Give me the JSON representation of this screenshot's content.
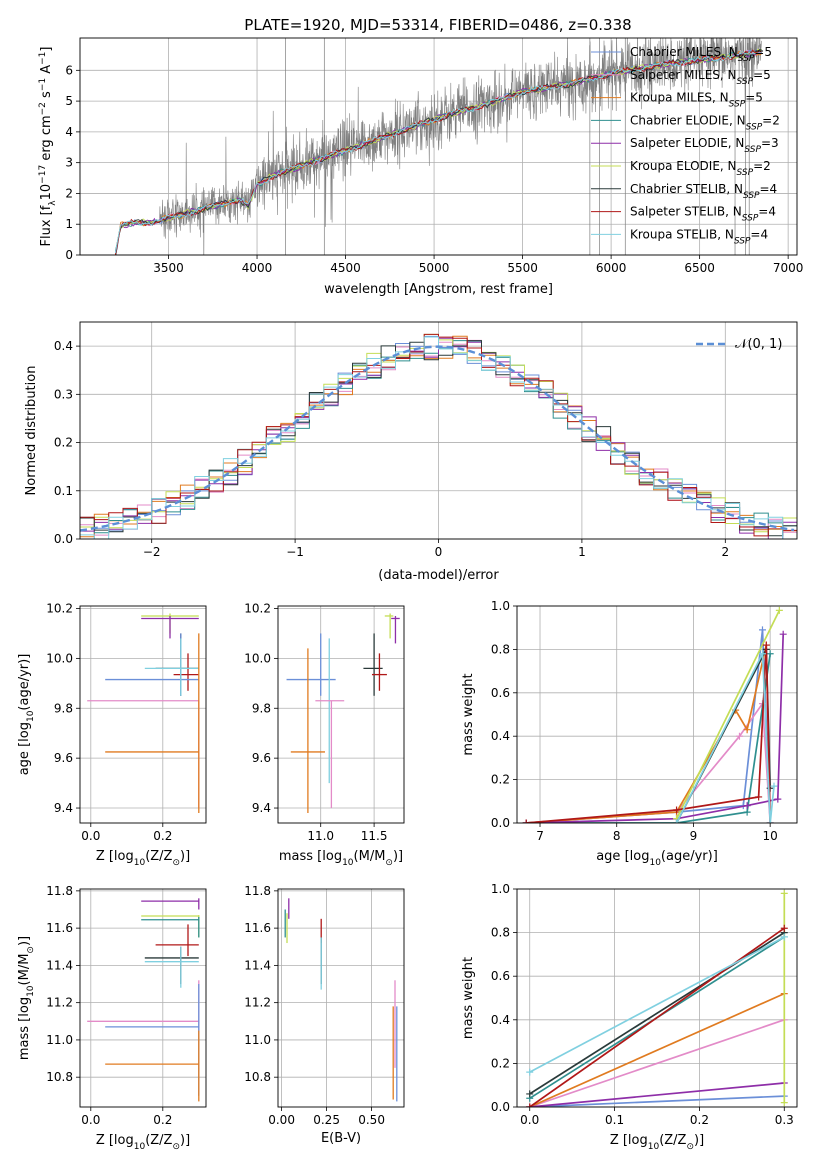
{
  "figure": {
    "title": "PLATE=1920, MJD=53314, FIBERID=0486, z=0.338"
  },
  "colors": {
    "grid": "#b0b0b0",
    "spectrum": "#7f7f7f",
    "gauss": "#5b8fd6"
  },
  "legend_series": [
    {
      "id": "chab_miles",
      "name_plain": "Chabrier MILES, N",
      "name_sub": "SSP",
      "name_tail": "=5",
      "color": "#6b8fd8"
    },
    {
      "id": "salp_miles",
      "name_plain": "Salpeter MILES, N",
      "name_sub": "SSP",
      "name_tail": "=5",
      "color": "#e38bc8"
    },
    {
      "id": "krou_miles",
      "name_plain": "Kroupa MILES, N",
      "name_sub": "SSP",
      "name_tail": "=5",
      "color": "#e07b20"
    },
    {
      "id": "chab_elodie",
      "name_plain": "Chabrier ELODIE, N",
      "name_sub": "SSP",
      "name_tail": "=2",
      "color": "#2f8f8f"
    },
    {
      "id": "salp_elodie",
      "name_plain": "Salpeter ELODIE, N",
      "name_sub": "SSP",
      "name_tail": "=3",
      "color": "#8e2ea8"
    },
    {
      "id": "krou_elodie",
      "name_plain": "Kroupa ELODIE, N",
      "name_sub": "SSP",
      "name_tail": "=2",
      "color": "#c4dd55"
    },
    {
      "id": "chab_stelib",
      "name_plain": "Chabrier STELIB, N",
      "name_sub": "SSP",
      "name_tail": "=4",
      "color": "#2a3a3a"
    },
    {
      "id": "salp_stelib",
      "name_plain": "Salpeter STELIB, N",
      "name_sub": "SSP",
      "name_tail": "=4",
      "color": "#b01818"
    },
    {
      "id": "krou_stelib",
      "name_plain": "Kroupa STELIB, N",
      "name_sub": "SSP",
      "name_tail": "=4",
      "color": "#80d0e0"
    }
  ],
  "chart_data": [
    {
      "id": "spectrum",
      "type": "line",
      "xlabel": "wavelength [Angstrom, rest frame]",
      "ylabel_parts": [
        "Flux [f",
        "λ",
        "10",
        "−17",
        " erg cm",
        "−2",
        " s",
        "−1",
        " A",
        "−1",
        "]"
      ],
      "xlim": [
        3000,
        7050
      ],
      "ylim": [
        0,
        7.05
      ],
      "xticks": [
        3500,
        4000,
        4500,
        5000,
        5500,
        6000,
        6500,
        7000
      ],
      "yticks": [
        0,
        1,
        2,
        3,
        4,
        5,
        6
      ],
      "legend_position": "top-right",
      "continuum_anchors": [
        [
          3200,
          0.02
        ],
        [
          3230,
          0.95
        ],
        [
          3300,
          1.05
        ],
        [
          3400,
          1.05
        ],
        [
          3500,
          1.2
        ],
        [
          3700,
          1.5
        ],
        [
          3900,
          1.8
        ],
        [
          3950,
          1.6
        ],
        [
          4000,
          2.3
        ],
        [
          4100,
          2.6
        ],
        [
          4300,
          3.0
        ],
        [
          4500,
          3.4
        ],
        [
          4700,
          3.8
        ],
        [
          4900,
          4.2
        ],
        [
          5100,
          4.6
        ],
        [
          5300,
          4.9
        ],
        [
          5500,
          5.3
        ],
        [
          5800,
          5.6
        ],
        [
          6000,
          5.9
        ],
        [
          6300,
          6.2
        ],
        [
          6600,
          6.4
        ],
        [
          6850,
          6.6
        ]
      ]
    },
    {
      "id": "residuals",
      "type": "step",
      "xlabel": "(data-model)/error",
      "ylabel": "Normed distribution",
      "xlim": [
        -2.5,
        2.5
      ],
      "ylim": [
        0,
        0.45
      ],
      "xticks": [
        -2,
        -1,
        0,
        1,
        2
      ],
      "xtick_labels": [
        "−2",
        "−1",
        "0",
        "1",
        "2"
      ],
      "yticks": [
        0.0,
        0.1,
        0.2,
        0.3,
        0.4
      ],
      "legend_label": "𝒩(0, 1)",
      "legend_position": "top-right",
      "bin_width": 0.1
    },
    {
      "id": "age_vs_Z",
      "type": "errorbar",
      "xlabel_parts": [
        "Z [log",
        "10",
        "(Z/Z",
        "⊙",
        ")]"
      ],
      "ylabel_parts": [
        "age  [log",
        "10",
        "(age/yr)]"
      ],
      "xlim": [
        -0.03,
        0.32
      ],
      "ylim": [
        9.34,
        10.21
      ],
      "xticks": [
        0.0,
        0.2
      ],
      "yticks": [
        9.4,
        9.6,
        9.8,
        10.0,
        10.2
      ],
      "points": [
        {
          "series": "krou_elodie",
          "x": 0.22,
          "xlo": 0.14,
          "xhi": 0.3,
          "y": 10.17,
          "ylo": 10.1,
          "yhi": 10.18
        },
        {
          "series": "salp_elodie",
          "x": 0.22,
          "xlo": 0.14,
          "xhi": 0.3,
          "y": 10.16,
          "ylo": 10.08,
          "yhi": 10.17
        },
        {
          "series": "chab_stelib",
          "x": 0.25,
          "xlo": 0.18,
          "xhi": 0.3,
          "y": 9.96,
          "ylo": 9.85,
          "yhi": 10.1
        },
        {
          "series": "salp_stelib",
          "x": 0.27,
          "xlo": 0.23,
          "xhi": 0.3,
          "y": 9.935,
          "ylo": 9.87,
          "yhi": 10.02
        },
        {
          "series": "chab_miles",
          "x": 0.25,
          "xlo": 0.04,
          "xhi": 0.3,
          "y": 9.915,
          "ylo": 9.85,
          "yhi": 10.1
        },
        {
          "series": "krou_stelib",
          "x": 0.25,
          "xlo": 0.15,
          "xhi": 0.3,
          "y": 9.96,
          "ylo": 9.85,
          "yhi": 10.08
        },
        {
          "series": "salp_miles",
          "x": 0.3,
          "xlo": -0.01,
          "xhi": 0.3,
          "y": 9.83,
          "ylo": 9.4,
          "yhi": 9.83
        },
        {
          "series": "krou_miles",
          "x": 0.3,
          "xlo": 0.04,
          "xhi": 0.3,
          "y": 9.625,
          "ylo": 9.38,
          "yhi": 10.1
        }
      ]
    },
    {
      "id": "age_vs_mass",
      "type": "errorbar",
      "xlabel_parts": [
        "mass [log",
        "10",
        "(M/M",
        "⊙",
        ")]"
      ],
      "ylabel_parts": [],
      "xlim": [
        10.6,
        11.78
      ],
      "ylim": [
        9.34,
        10.21
      ],
      "xticks": [
        11.0,
        11.5
      ],
      "yticks": [
        9.4,
        9.6,
        9.8,
        10.0,
        10.2
      ],
      "points": [
        {
          "series": "krou_elodie",
          "x": 11.65,
          "xlo": 11.6,
          "xhi": 11.68,
          "y": 10.17,
          "ylo": 10.08,
          "yhi": 10.18
        },
        {
          "series": "salp_elodie",
          "x": 11.7,
          "xlo": 11.66,
          "xhi": 11.74,
          "y": 10.16,
          "ylo": 10.06,
          "yhi": 10.17
        },
        {
          "series": "chab_stelib",
          "x": 11.5,
          "xlo": 11.4,
          "xhi": 11.58,
          "y": 9.96,
          "ylo": 9.85,
          "yhi": 10.1
        },
        {
          "series": "salp_stelib",
          "x": 11.55,
          "xlo": 11.48,
          "xhi": 11.62,
          "y": 9.935,
          "ylo": 9.87,
          "yhi": 10.02
        },
        {
          "series": "chab_miles",
          "x": 11.0,
          "xlo": 10.68,
          "xhi": 11.14,
          "y": 9.915,
          "ylo": 9.85,
          "yhi": 10.1
        },
        {
          "series": "krou_stelib",
          "x": 11.08,
          "xlo": 11.08,
          "xhi": 11.08,
          "y": 9.96,
          "ylo": 9.5,
          "yhi": 10.08
        },
        {
          "series": "salp_miles",
          "x": 11.1,
          "xlo": 10.95,
          "xhi": 11.22,
          "y": 9.83,
          "ylo": 9.4,
          "yhi": 9.83
        },
        {
          "series": "krou_miles",
          "x": 10.88,
          "xlo": 10.72,
          "xhi": 11.04,
          "y": 9.625,
          "ylo": 9.38,
          "yhi": 10.04
        }
      ]
    },
    {
      "id": "weight_vs_age",
      "type": "line",
      "xlabel_parts": [
        "age  [log",
        "10",
        "(age/yr)]"
      ],
      "ylabel": "mass weight",
      "xlim": [
        6.7,
        10.35
      ],
      "ylim": [
        0,
        1.0
      ],
      "xticks": [
        7,
        8,
        9,
        10
      ],
      "yticks": [
        0.0,
        0.2,
        0.4,
        0.6,
        0.8,
        1.0
      ],
      "series": [
        {
          "series": "chab_miles",
          "x": [
            6.82,
            8.78,
            9.65,
            9.9,
            10.0
          ],
          "y": [
            0.0,
            0.05,
            0.08,
            0.89,
            0.0
          ]
        },
        {
          "series": "salp_miles",
          "x": [
            6.82,
            8.78,
            9.6,
            9.9,
            10.0
          ],
          "y": [
            0.0,
            0.05,
            0.4,
            0.55,
            0.0
          ]
        },
        {
          "series": "krou_miles",
          "x": [
            6.82,
            8.78,
            9.55,
            9.7,
            9.95
          ],
          "y": [
            0.0,
            0.05,
            0.52,
            0.43,
            0.82
          ]
        },
        {
          "series": "chab_elodie",
          "x": [
            6.82,
            8.78,
            9.7,
            10.0
          ],
          "y": [
            0.0,
            0.0,
            0.05,
            0.78
          ]
        },
        {
          "series": "salp_elodie",
          "x": [
            6.82,
            8.78,
            9.7,
            10.1,
            10.17
          ],
          "y": [
            0.0,
            0.02,
            0.08,
            0.11,
            0.87
          ]
        },
        {
          "series": "krou_elodie",
          "x": [
            8.78,
            10.12
          ],
          "y": [
            0.02,
            0.98
          ]
        },
        {
          "series": "chab_stelib",
          "x": [
            8.78,
            9.95,
            10.0
          ],
          "y": [
            0.0,
            0.8,
            0.16
          ]
        },
        {
          "series": "salp_stelib",
          "x": [
            6.82,
            8.78,
            9.85,
            9.95,
            10.0
          ],
          "y": [
            0.0,
            0.06,
            0.12,
            0.82,
            0.0
          ]
        },
        {
          "series": "krou_stelib",
          "x": [
            8.78,
            9.9,
            10.0,
            10.05
          ],
          "y": [
            0.0,
            0.78,
            0.0,
            0.17
          ]
        }
      ]
    },
    {
      "id": "mass_vs_Z",
      "type": "errorbar",
      "xlabel_parts": [
        "Z [log",
        "10",
        "(Z/Z",
        "⊙",
        ")]"
      ],
      "ylabel_parts": [
        "mass [log",
        "10",
        "(M/M",
        "⊙",
        ")]"
      ],
      "xlim": [
        -0.03,
        0.32
      ],
      "ylim": [
        10.64,
        11.81
      ],
      "xticks": [
        0.0,
        0.2
      ],
      "yticks": [
        10.8,
        11.0,
        11.2,
        11.4,
        11.6,
        11.8
      ],
      "points": [
        {
          "series": "salp_elodie",
          "x": 0.3,
          "xlo": 0.14,
          "xhi": 0.3,
          "y": 11.745,
          "ylo": 11.7,
          "yhi": 11.76
        },
        {
          "series": "krou_elodie",
          "x": 0.3,
          "xlo": 0.14,
          "xhi": 0.3,
          "y": 11.665,
          "ylo": 11.55,
          "yhi": 11.67
        },
        {
          "series": "chab_elodie",
          "x": 0.3,
          "xlo": 0.14,
          "xhi": 0.3,
          "y": 11.645,
          "ylo": 11.55,
          "yhi": 11.66
        },
        {
          "series": "salp_stelib",
          "x": 0.27,
          "xlo": 0.18,
          "xhi": 0.3,
          "y": 11.51,
          "ylo": 11.45,
          "yhi": 11.62
        },
        {
          "series": "chab_stelib",
          "x": 0.25,
          "xlo": 0.15,
          "xhi": 0.3,
          "y": 11.44,
          "ylo": 11.3,
          "yhi": 11.5
        },
        {
          "series": "krou_stelib",
          "x": 0.25,
          "xlo": 0.15,
          "xhi": 0.3,
          "y": 11.42,
          "ylo": 11.28,
          "yhi": 11.5
        },
        {
          "series": "salp_miles",
          "x": 0.3,
          "xlo": -0.01,
          "xhi": 0.3,
          "y": 11.1,
          "ylo": 11.05,
          "yhi": 11.32
        },
        {
          "series": "chab_miles",
          "x": 0.3,
          "xlo": 0.04,
          "xhi": 0.3,
          "y": 11.07,
          "ylo": 10.7,
          "yhi": 11.3
        },
        {
          "series": "krou_miles",
          "x": 0.3,
          "xlo": 0.04,
          "xhi": 0.3,
          "y": 10.87,
          "ylo": 10.67,
          "yhi": 11.05
        }
      ]
    },
    {
      "id": "mass_vs_EBV",
      "type": "errorbar",
      "xlabel": "E(B-V)",
      "ylabel_parts": [],
      "xlim": [
        -0.02,
        0.68
      ],
      "ylim": [
        10.64,
        11.81
      ],
      "xticks": [
        0.0,
        0.25,
        0.5
      ],
      "xtick_labels": [
        "0.00",
        "0.25",
        "0.50"
      ],
      "yticks": [
        10.8,
        11.0,
        11.2,
        11.4,
        11.6,
        11.8
      ],
      "points": [
        {
          "series": "salp_elodie",
          "x": 0.04,
          "xlo": 0.04,
          "xhi": 0.04,
          "y": 11.7,
          "ylo": 11.65,
          "yhi": 11.76
        },
        {
          "series": "chab_elodie",
          "x": 0.02,
          "xlo": 0.02,
          "xhi": 0.02,
          "y": 11.65,
          "ylo": 11.55,
          "yhi": 11.7
        },
        {
          "series": "krou_elodie",
          "x": 0.03,
          "xlo": 0.03,
          "xhi": 0.03,
          "y": 11.6,
          "ylo": 11.52,
          "yhi": 11.68
        },
        {
          "series": "salp_stelib",
          "x": 0.22,
          "xlo": 0.22,
          "xhi": 0.22,
          "y": 11.57,
          "ylo": 11.52,
          "yhi": 11.65
        },
        {
          "series": "chab_stelib",
          "x": 0.22,
          "xlo": 0.22,
          "xhi": 0.22,
          "y": 11.42,
          "ylo": 11.3,
          "yhi": 11.55
        },
        {
          "series": "krou_stelib",
          "x": 0.22,
          "xlo": 0.22,
          "xhi": 0.22,
          "y": 11.4,
          "ylo": 11.27,
          "yhi": 11.55
        },
        {
          "series": "salp_miles",
          "x": 0.63,
          "xlo": 0.63,
          "xhi": 0.63,
          "y": 11.1,
          "ylo": 10.85,
          "yhi": 11.32
        },
        {
          "series": "chab_miles",
          "x": 0.64,
          "xlo": 0.64,
          "xhi": 0.64,
          "y": 11.07,
          "ylo": 10.67,
          "yhi": 11.18
        },
        {
          "series": "krou_miles",
          "x": 0.62,
          "xlo": 0.62,
          "xhi": 0.62,
          "y": 10.87,
          "ylo": 10.68,
          "yhi": 11.18
        }
      ]
    },
    {
      "id": "weight_vs_Z",
      "type": "line",
      "xlabel_parts": [
        "Z [log",
        "10",
        "(Z/Z",
        "⊙",
        ")]"
      ],
      "ylabel": "mass weight",
      "xlim": [
        -0.015,
        0.315
      ],
      "ylim": [
        0,
        1.0
      ],
      "xticks": [
        0.0,
        0.1,
        0.2,
        0.3
      ],
      "yticks": [
        0.0,
        0.2,
        0.4,
        0.6,
        0.8,
        1.0
      ],
      "series": [
        {
          "series": "chab_miles",
          "x": [
            0.0,
            0.3
          ],
          "y": [
            0.0,
            0.05
          ]
        },
        {
          "series": "salp_miles",
          "x": [
            0.0,
            0.3
          ],
          "y": [
            0.0,
            0.4
          ]
        },
        {
          "series": "krou_miles",
          "x": [
            0.0,
            0.3
          ],
          "y": [
            0.0,
            0.52
          ]
        },
        {
          "series": "chab_elodie",
          "x": [
            0.0,
            0.3
          ],
          "y": [
            0.04,
            0.78
          ]
        },
        {
          "series": "salp_elodie",
          "x": [
            0.0,
            0.3
          ],
          "y": [
            0.0,
            0.11
          ]
        },
        {
          "series": "krou_elodie",
          "x": [
            0.3,
            0.3
          ],
          "y": [
            0.02,
            0.98
          ]
        },
        {
          "series": "chab_stelib",
          "x": [
            0.0,
            0.3
          ],
          "y": [
            0.06,
            0.8
          ]
        },
        {
          "series": "salp_stelib",
          "x": [
            0.0,
            0.3
          ],
          "y": [
            0.0,
            0.82
          ]
        },
        {
          "series": "krou_stelib",
          "x": [
            0.0,
            0.3
          ],
          "y": [
            0.16,
            0.78
          ]
        }
      ]
    }
  ]
}
